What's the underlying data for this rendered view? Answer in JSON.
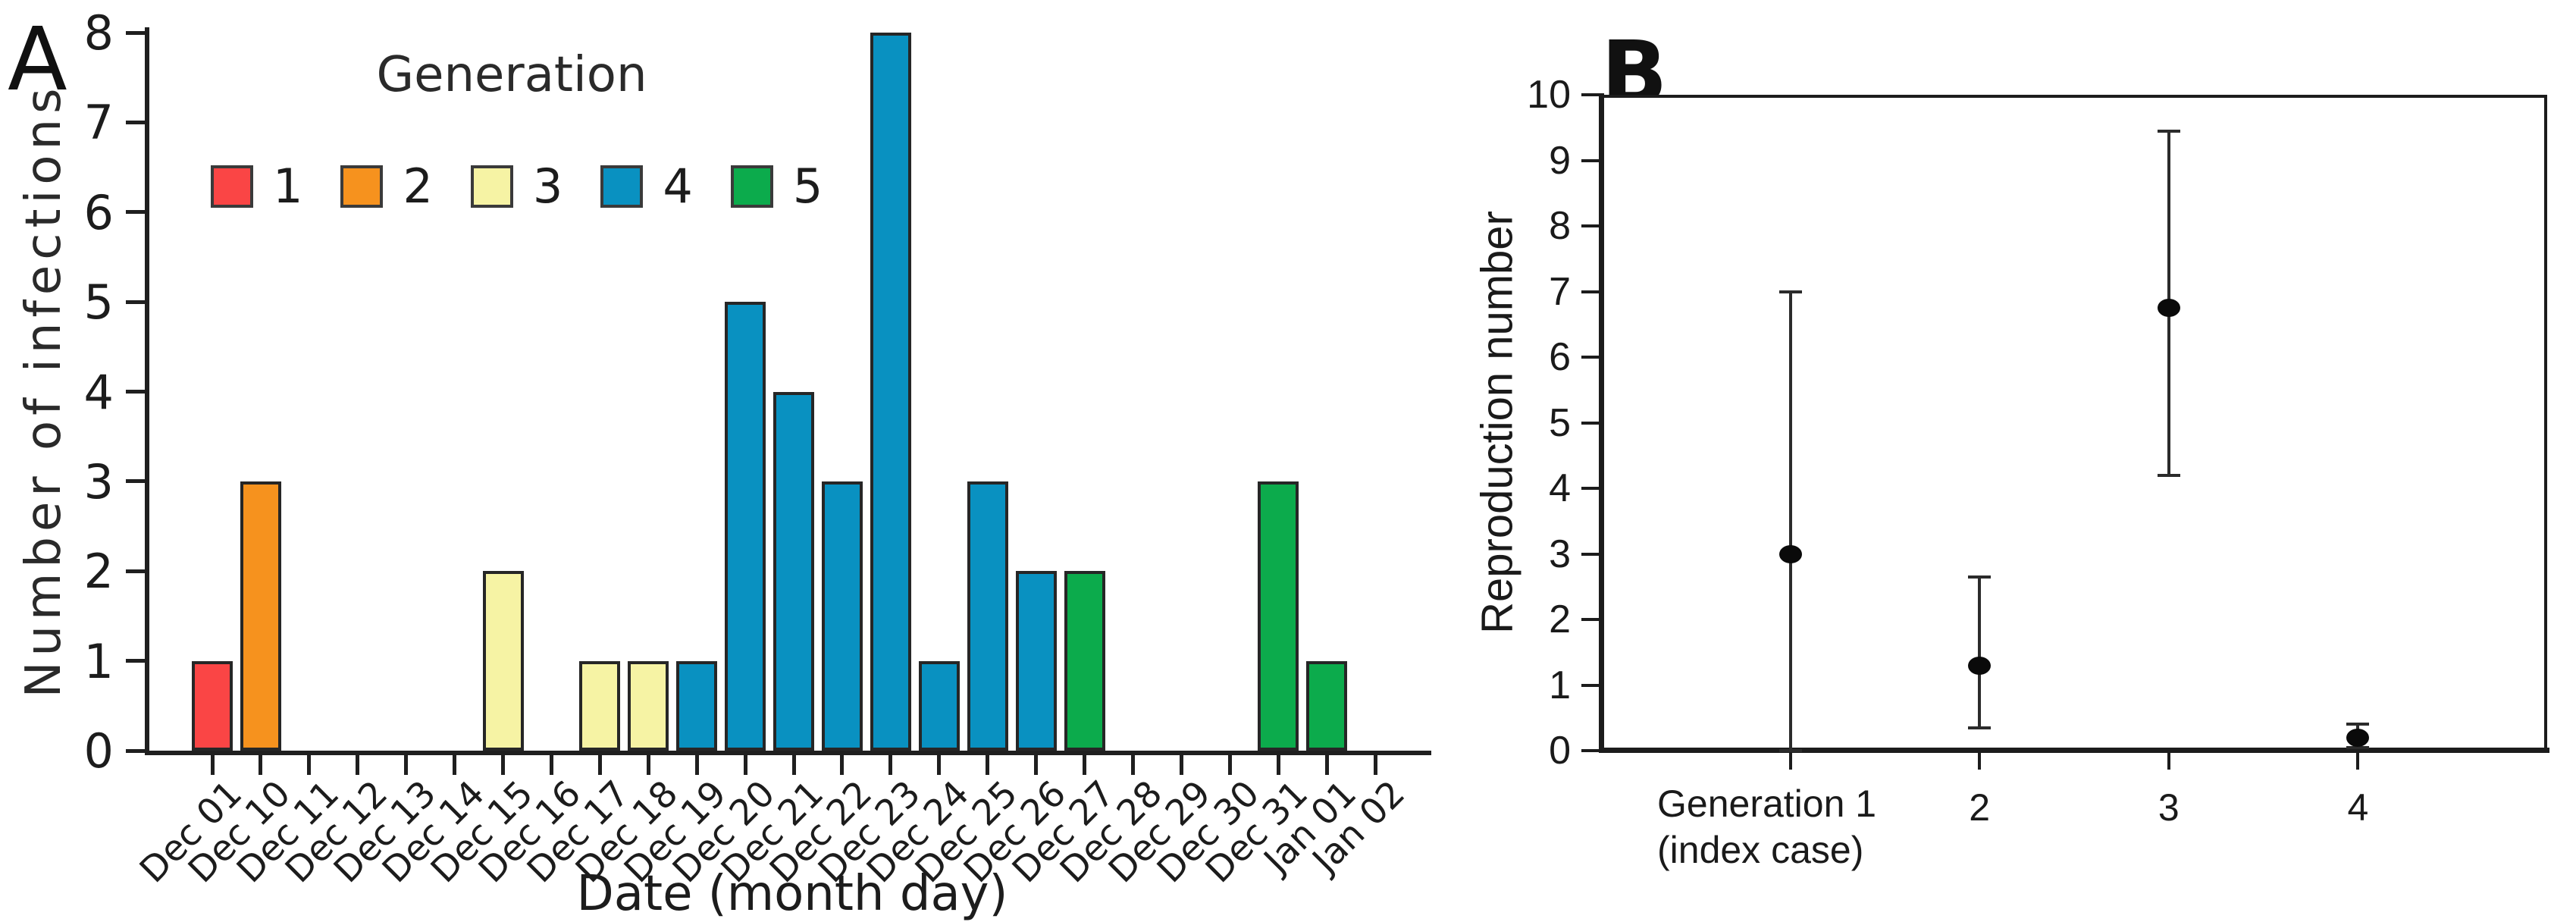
{
  "panels": {
    "a_label": "A",
    "b_label": "B"
  },
  "legend": {
    "title": "Generation",
    "items": [
      {
        "label": "1",
        "color": "#FA4545"
      },
      {
        "label": "2",
        "color": "#F6921E"
      },
      {
        "label": "3",
        "color": "#F6F3A4"
      },
      {
        "label": "4",
        "color": "#0991C1"
      },
      {
        "label": "5",
        "color": "#0CAB4C"
      }
    ]
  },
  "chart_data": [
    {
      "type": "bar",
      "panel": "A",
      "title": "",
      "xlabel": "Date (month day)",
      "ylabel": "Number of infections",
      "ylim": [
        0,
        8
      ],
      "yticks": [
        0,
        1,
        2,
        3,
        4,
        5,
        6,
        7,
        8
      ],
      "grid": false,
      "legend_position": "upper-left-inside",
      "legend_title": "Generation",
      "categories": [
        "Dec 01",
        "Dec 10",
        "Dec 11",
        "Dec 12",
        "Dec 13",
        "Dec 14",
        "Dec 15",
        "Dec 16",
        "Dec 17",
        "Dec 18",
        "Dec 19",
        "Dec 20",
        "Dec 21",
        "Dec 22",
        "Dec 23",
        "Dec 24",
        "Dec 25",
        "Dec 26",
        "Dec 27",
        "Dec 28",
        "Dec 29",
        "Dec 30",
        "Dec 31",
        "Jan 01",
        "Jan 02"
      ],
      "values": [
        1,
        3,
        0,
        0,
        0,
        0,
        2,
        0,
        1,
        1,
        1,
        5,
        4,
        3,
        8,
        1,
        3,
        2,
        2,
        0,
        0,
        0,
        3,
        1,
        0
      ],
      "generation_per_bar": [
        1,
        2,
        null,
        null,
        null,
        null,
        3,
        null,
        3,
        3,
        4,
        4,
        4,
        4,
        4,
        4,
        4,
        4,
        5,
        null,
        null,
        null,
        5,
        5,
        null
      ],
      "generation_colors": {
        "1": "#FA4545",
        "2": "#F6921E",
        "3": "#F6F3A4",
        "4": "#0991C1",
        "5": "#0CAB4C"
      }
    },
    {
      "type": "scatter",
      "panel": "B",
      "title": "",
      "xlabel": "",
      "ylabel": "Reproduction number",
      "ylim": [
        0,
        10
      ],
      "yticks": [
        0,
        1,
        2,
        3,
        4,
        5,
        6,
        7,
        8,
        9,
        10
      ],
      "grid": false,
      "xtick_labels": [
        "Generation 1",
        "2",
        "3",
        "4"
      ],
      "xtick_sublabel_first": "(index case)",
      "points": [
        {
          "x": 1,
          "y": 3.0,
          "ci_low": 0.0,
          "ci_high": 7.0
        },
        {
          "x": 2,
          "y": 1.3,
          "ci_low": 0.35,
          "ci_high": 2.65
        },
        {
          "x": 3,
          "y": 6.75,
          "ci_low": 4.2,
          "ci_high": 9.45
        },
        {
          "x": 4,
          "y": 0.2,
          "ci_low": 0.05,
          "ci_high": 0.4
        }
      ]
    }
  ]
}
